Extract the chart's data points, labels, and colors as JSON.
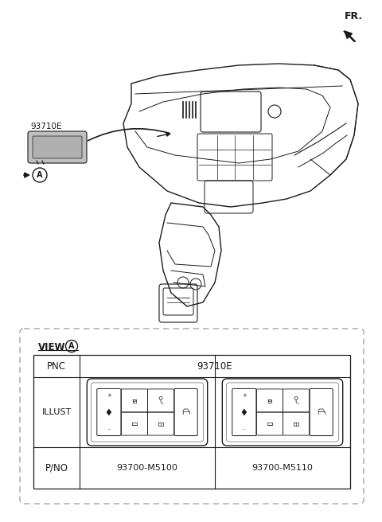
{
  "bg_color": "#ffffff",
  "line_color": "#1a1a1a",
  "gray_fill": "#b0b0b0",
  "dash_color": "#999999",
  "fr_label": "FR.",
  "part_label": "93710E",
  "callout_A": "A",
  "view_label": "VIEW",
  "pnc_label": "PNC",
  "illust_label": "ILLUST",
  "pno_label": "P/NO",
  "pnc_value": "93710E",
  "pno_value1": "93700-M5100",
  "pno_value2": "93700-M5110",
  "figw": 4.8,
  "figh": 6.56,
  "dpi": 100
}
